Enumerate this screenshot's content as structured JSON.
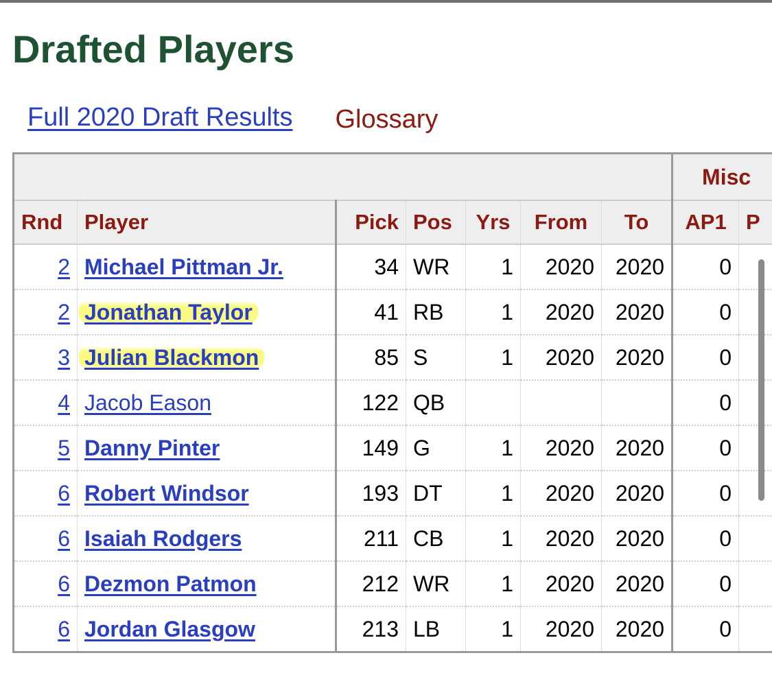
{
  "page": {
    "title": "Drafted Players"
  },
  "links": {
    "draft_results": "Full 2020 Draft Results",
    "glossary": "Glossary"
  },
  "table": {
    "over_header": "Misc",
    "headers": {
      "rnd": "Rnd",
      "player": "Player",
      "pick": "Pick",
      "pos": "Pos",
      "yrs": "Yrs",
      "from": "From",
      "to": "To",
      "ap1": "AP1",
      "pb": "P"
    },
    "rows": [
      {
        "rnd": "2",
        "player": "Michael Pittman Jr.",
        "pick": "34",
        "pos": "WR",
        "yrs": "1",
        "from": "2020",
        "to": "2020",
        "ap1": "0",
        "bold": true,
        "highlighted": false
      },
      {
        "rnd": "2",
        "player": "Jonathan Taylor",
        "pick": "41",
        "pos": "RB",
        "yrs": "1",
        "from": "2020",
        "to": "2020",
        "ap1": "0",
        "bold": true,
        "highlighted": true
      },
      {
        "rnd": "3",
        "player": "Julian Blackmon",
        "pick": "85",
        "pos": "S",
        "yrs": "1",
        "from": "2020",
        "to": "2020",
        "ap1": "0",
        "bold": true,
        "highlighted": true
      },
      {
        "rnd": "4",
        "player": "Jacob Eason",
        "pick": "122",
        "pos": "QB",
        "yrs": "",
        "from": "",
        "to": "",
        "ap1": "0",
        "bold": false,
        "highlighted": false
      },
      {
        "rnd": "5",
        "player": "Danny Pinter",
        "pick": "149",
        "pos": "G",
        "yrs": "1",
        "from": "2020",
        "to": "2020",
        "ap1": "0",
        "bold": true,
        "highlighted": false
      },
      {
        "rnd": "6",
        "player": "Robert Windsor",
        "pick": "193",
        "pos": "DT",
        "yrs": "1",
        "from": "2020",
        "to": "2020",
        "ap1": "0",
        "bold": true,
        "highlighted": false
      },
      {
        "rnd": "6",
        "player": "Isaiah Rodgers",
        "pick": "211",
        "pos": "CB",
        "yrs": "1",
        "from": "2020",
        "to": "2020",
        "ap1": "0",
        "bold": true,
        "highlighted": false
      },
      {
        "rnd": "6",
        "player": "Dezmon Patmon",
        "pick": "212",
        "pos": "WR",
        "yrs": "1",
        "from": "2020",
        "to": "2020",
        "ap1": "0",
        "bold": true,
        "highlighted": false
      },
      {
        "rnd": "6",
        "player": "Jordan Glasgow",
        "pick": "213",
        "pos": "LB",
        "yrs": "1",
        "from": "2020",
        "to": "2020",
        "ap1": "0",
        "bold": true,
        "highlighted": false
      }
    ]
  }
}
